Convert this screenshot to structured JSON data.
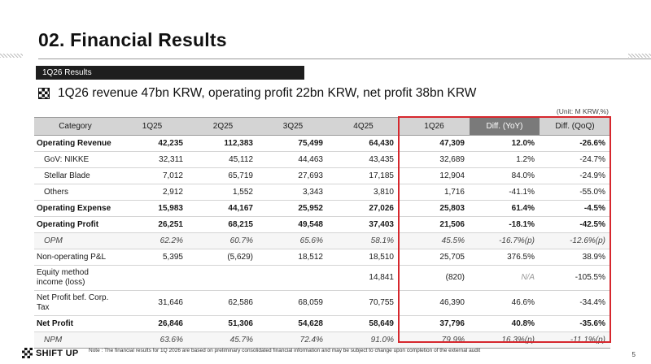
{
  "page": {
    "title": "02. Financial Results",
    "section_tag": "1Q26 Results",
    "headline": "1Q26 revenue 47bn KRW, operating profit 22bn KRW, net profit 38bn KRW",
    "unit": "(Unit: M KRW,%)",
    "note": "Note : The financial results for 1Q 2026 are based on preliminary consolidated financial information and may be subject to change upon completion of the external audit",
    "page_number": "5",
    "logo_text": "SHIFT UP"
  },
  "table": {
    "headers": [
      "Category",
      "1Q25",
      "2Q25",
      "3Q25",
      "4Q25",
      "1Q26",
      "Diff. (YoY)",
      "Diff. (QoQ)"
    ],
    "rows": [
      {
        "label": "Operating Revenue",
        "values": [
          "42,235",
          "112,383",
          "75,499",
          "64,430",
          "47,309",
          "12.0%",
          "-26.6%"
        ]
      },
      {
        "label": "GoV: NIKKE",
        "values": [
          "32,311",
          "45,112",
          "44,463",
          "43,435",
          "32,689",
          "1.2%",
          "-24.7%"
        ]
      },
      {
        "label": "Stellar Blade",
        "values": [
          "7,012",
          "65,719",
          "27,693",
          "17,185",
          "12,904",
          "84.0%",
          "-24.9%"
        ]
      },
      {
        "label": "Others",
        "values": [
          "2,912",
          "1,552",
          "3,343",
          "3,810",
          "1,716",
          "-41.1%",
          "-55.0%"
        ]
      },
      {
        "label": "Operating Expense",
        "values": [
          "15,983",
          "44,167",
          "25,952",
          "27,026",
          "25,803",
          "61.4%",
          "-4.5%"
        ]
      },
      {
        "label": "Operating Profit",
        "values": [
          "26,251",
          "68,215",
          "49,548",
          "37,403",
          "21,506",
          "-18.1%",
          "-42.5%"
        ]
      },
      {
        "label": "OPM",
        "values": [
          "62.2%",
          "60.7%",
          "65.6%",
          "58.1%",
          "45.5%",
          "-16.7%(p)",
          "-12.6%(p)"
        ]
      },
      {
        "label": "Non-operating P&L",
        "values": [
          "5,395",
          "(5,629)",
          "18,512",
          "18,510",
          "25,705",
          "376.5%",
          "38.9%"
        ]
      },
      {
        "label": "Equity method income (loss)",
        "values": [
          "",
          "",
          "",
          "14,841",
          "(820)",
          "N/A",
          "-105.5%"
        ]
      },
      {
        "label": "Net Profit bef. Corp. Tax",
        "values": [
          "31,646",
          "62,586",
          "68,059",
          "70,755",
          "46,390",
          "46.6%",
          "-34.4%"
        ]
      },
      {
        "label": "Net Profit",
        "values": [
          "26,846",
          "51,306",
          "54,628",
          "58,649",
          "37,796",
          "40.8%",
          "-35.6%"
        ]
      },
      {
        "label": "NPM",
        "values": [
          "63.6%",
          "45.7%",
          "72.4%",
          "91.0%",
          "79.9%",
          "16.3%(p)",
          "-11.1%(p)"
        ]
      }
    ]
  },
  "colors": {
    "highlight_border": "#d6272d",
    "header_bg": "#d4d4d4",
    "header_dark_bg": "#7a7a7a",
    "section_tag_bg": "#1e1e1e"
  }
}
